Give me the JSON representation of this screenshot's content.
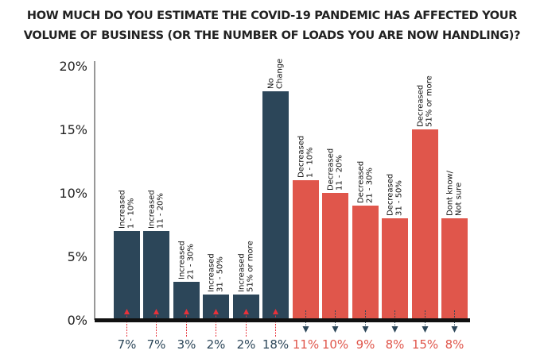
{
  "chart_data": {
    "type": "bar",
    "title_lines": [
      "HOW MUCH DO YOU ESTIMATE THE COVID-19 PANDEMIC HAS AFFECTED YOUR",
      "VOLUME OF BUSINESS (OR THE NUMBER OF LOADS YOU ARE NOW HANDLING)?"
    ],
    "categories": [
      [
        "Increased",
        "1 - 10%"
      ],
      [
        "Increased",
        "11 - 20%"
      ],
      [
        "Increased",
        "21 - 30%"
      ],
      [
        "Increased",
        "31 - 50%"
      ],
      [
        "Increased",
        "51% or more"
      ],
      [
        "No",
        "Change"
      ],
      [
        "Decreased",
        "1 - 10%"
      ],
      [
        "Decreased",
        "11 - 20%"
      ],
      [
        "Decreased",
        "21 - 30%"
      ],
      [
        "Decreased",
        "31 - 50%"
      ],
      [
        "Decreased",
        "51% or more"
      ],
      [
        "Dont know/",
        "Not sure"
      ]
    ],
    "values": [
      7,
      7,
      3,
      2,
      2,
      18,
      11,
      10,
      9,
      8,
      15,
      8
    ],
    "value_labels": [
      "7%",
      "7%",
      "3%",
      "2%",
      "2%",
      "18%",
      "11%",
      "10%",
      "9%",
      "8%",
      "15%",
      "8%"
    ],
    "groups": [
      "up",
      "up",
      "up",
      "up",
      "up",
      "up",
      "down",
      "down",
      "down",
      "down",
      "down",
      "down"
    ],
    "ylim": [
      0,
      20
    ],
    "yticks": [
      0,
      5,
      10,
      15,
      20
    ],
    "ytick_labels": [
      "0%",
      "5%",
      "10%",
      "15%",
      "20%"
    ],
    "xlabel": "",
    "ylabel": "",
    "grid": false,
    "colors": {
      "up": "#2c4659",
      "down": "#e0564b",
      "up_arrow": "#e8313a",
      "down_arrow": "#2c4659",
      "text": "#222222"
    }
  }
}
